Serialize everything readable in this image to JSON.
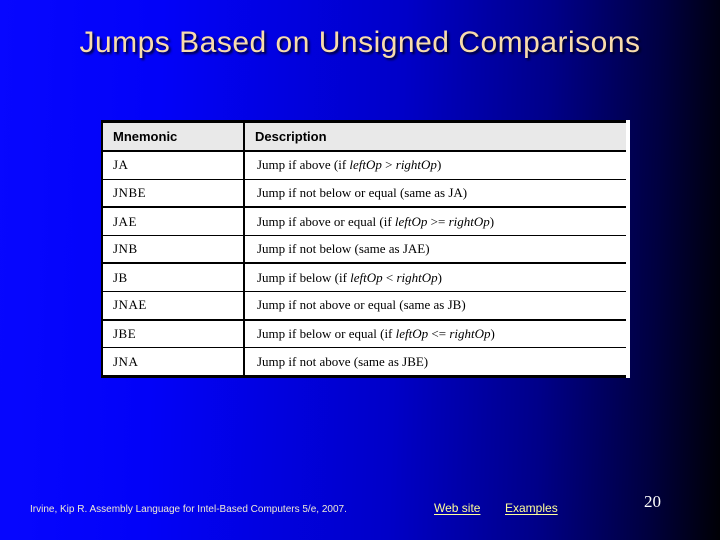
{
  "slide": {
    "title": "Jumps Based on Unsigned Comparisons",
    "page_number": "20",
    "colors": {
      "background_gradient_left": "#0707ff",
      "background_gradient_right": "#000005",
      "title_text": "#f8dcac",
      "footer_citation_text": "#efead6",
      "footer_link_text": "#ffff99",
      "page_number_text": "#ffffff",
      "table_header_bg": "#e9e9e9",
      "table_border": "#000000"
    }
  },
  "table": {
    "headers": [
      "Mnemonic",
      "Description"
    ],
    "rows": [
      {
        "mnemonic": "JA",
        "description": [
          {
            "t": "Jump if above (if "
          },
          {
            "t": "leftOp",
            "i": true
          },
          {
            "t": " > "
          },
          {
            "t": "rightOp",
            "i": true
          },
          {
            "t": ")"
          }
        ],
        "group_start": false
      },
      {
        "mnemonic": "JNBE",
        "description": [
          {
            "t": "Jump if not below or equal (same as JA)"
          }
        ],
        "group_start": false
      },
      {
        "mnemonic": "JAE",
        "description": [
          {
            "t": "Jump if above or equal (if "
          },
          {
            "t": "leftOp",
            "i": true
          },
          {
            "t": " >= "
          },
          {
            "t": "rightOp",
            "i": true
          },
          {
            "t": ")"
          }
        ],
        "group_start": true
      },
      {
        "mnemonic": "JNB",
        "description": [
          {
            "t": "Jump if not below (same as JAE)"
          }
        ],
        "group_start": false
      },
      {
        "mnemonic": "JB",
        "description": [
          {
            "t": "Jump if below (if "
          },
          {
            "t": "leftOp",
            "i": true
          },
          {
            "t": " < "
          },
          {
            "t": "rightOp",
            "i": true
          },
          {
            "t": ")"
          }
        ],
        "group_start": true
      },
      {
        "mnemonic": "JNAE",
        "description": [
          {
            "t": "Jump if not above or equal (same as JB)"
          }
        ],
        "group_start": false
      },
      {
        "mnemonic": "JBE",
        "description": [
          {
            "t": "Jump if below or equal (if "
          },
          {
            "t": "leftOp",
            "i": true
          },
          {
            "t": " <= "
          },
          {
            "t": "rightOp",
            "i": true
          },
          {
            "t": ")"
          }
        ],
        "group_start": true
      },
      {
        "mnemonic": "JNA",
        "description": [
          {
            "t": "Jump if not above (same as JBE)"
          }
        ],
        "group_start": false
      }
    ]
  },
  "footer": {
    "citation": "Irvine, Kip R. Assembly Language for Intel-Based Computers 5/e, 2007.",
    "links": [
      {
        "label": "Web site"
      },
      {
        "label": "Examples"
      }
    ]
  }
}
